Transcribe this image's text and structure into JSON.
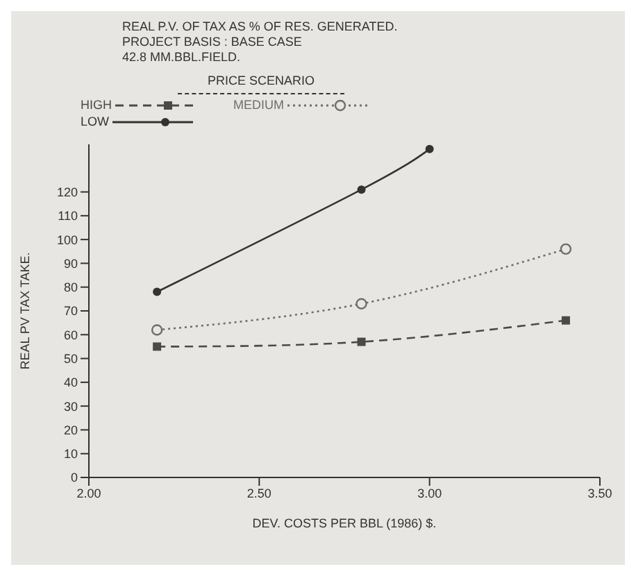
{
  "chart_data": {
    "type": "line",
    "title": "REAL P.V. OF TAX AS % OF RES. GENERATED.",
    "subtitle": "PROJECT BASIS : BASE CASE\n42.8 MM.BBL.FIELD.",
    "xlabel": "DEV. COSTS PER BBL (1986) $.",
    "ylabel": "REAL PV TAX TAKE.",
    "legend_title": "PRICE SCENARIO",
    "legend": "top",
    "xlim": [
      2.0,
      3.5
    ],
    "xticks": [
      {
        "value": 2.0,
        "label": "2.00"
      },
      {
        "value": 2.5,
        "label": "2.50"
      },
      {
        "value": 3.0,
        "label": "3.00"
      },
      {
        "value": 3.5,
        "label": "3.50"
      }
    ],
    "ylim": [
      0,
      140
    ],
    "yticks": [
      0,
      10,
      20,
      30,
      40,
      50,
      60,
      70,
      80,
      90,
      100,
      110,
      120
    ],
    "grid": false,
    "series": [
      {
        "name": "HIGH",
        "color": "#4a4a4a",
        "x": [
          2.2,
          2.8,
          3.4
        ],
        "values": [
          55,
          57,
          66
        ],
        "line_style": "dashed",
        "marker": "square"
      },
      {
        "name": "LOW",
        "color": "#333333",
        "x": [
          2.2,
          2.8,
          3.0
        ],
        "values": [
          78,
          121,
          138
        ],
        "line_style": "solid",
        "marker": "circle"
      },
      {
        "name": "MEDIUM",
        "color": "#6e6e6e",
        "x": [
          2.2,
          2.8,
          3.4
        ],
        "values": [
          62,
          73,
          96
        ],
        "line_style": "dotted",
        "marker": "circle-open"
      }
    ]
  }
}
